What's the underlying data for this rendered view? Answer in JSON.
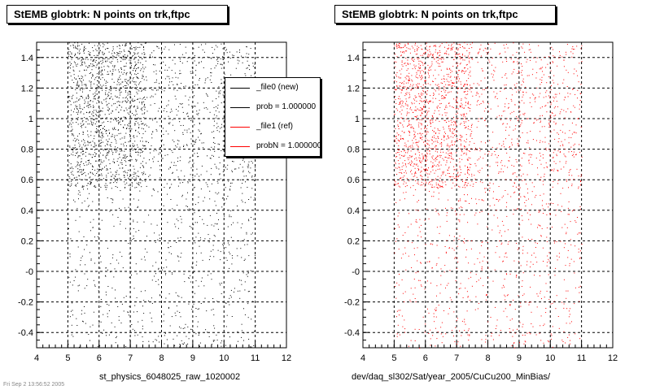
{
  "panels": [
    {
      "title": "StEMB globtrk: N points on trk,ftpc",
      "xlabel": "st_physics_6048025_raw_1020002",
      "marker_color": "#000000"
    },
    {
      "title": "StEMB globtrk: N points on trk,ftpc",
      "xlabel": "dev/daq_sl302/Sat/year_2005/CuCu200_MinBias/",
      "marker_color": "#ff0000"
    }
  ],
  "legend": {
    "entries": [
      {
        "label": "_file0 (new)",
        "color": "#000000"
      },
      {
        "label": "prob = 1.000000",
        "color": "#000000"
      },
      {
        "label": "_file1 (ref)",
        "color": "#ff0000"
      },
      {
        "label": "probN = 1.000000",
        "color": "#ff0000"
      }
    ]
  },
  "footer": {
    "text": "Fri Sep 2 13:56:52 2005"
  },
  "chart_data": [
    {
      "type": "scatter",
      "title": "StEMB globtrk: N points on trk,ftpc",
      "xlabel": "st_physics_6048025_raw_1020002",
      "ylabel": "",
      "xlim": [
        4,
        12
      ],
      "ylim": [
        -0.5,
        1.5
      ],
      "x_ticks": [
        "4",
        "5",
        "6",
        "7",
        "8",
        "9",
        "10",
        "11",
        "12"
      ],
      "y_ticks": [
        "-0.4",
        "-0.2",
        "-0",
        "0.2",
        "0.4",
        "0.6",
        "0.8",
        "1",
        "1.2",
        "1.4"
      ],
      "grid": true,
      "series": [
        {
          "name": "_file0 (new)",
          "color": "#000000",
          "x_range": [
            5,
            11
          ],
          "y_range": [
            -0.5,
            1.5
          ],
          "dense_y_range": [
            0.55,
            1.5
          ],
          "dense_x_range": [
            5,
            7.5
          ]
        }
      ]
    },
    {
      "type": "scatter",
      "title": "StEMB globtrk: N points on trk,ftpc",
      "xlabel": "dev/daq_sl302/Sat/year_2005/CuCu200_MinBias/",
      "ylabel": "",
      "xlim": [
        4,
        12
      ],
      "ylim": [
        -0.5,
        1.5
      ],
      "x_ticks": [
        "4",
        "5",
        "6",
        "7",
        "8",
        "9",
        "10",
        "11",
        "12"
      ],
      "y_ticks": [
        "-0.4",
        "-0.2",
        "-0",
        "0.2",
        "0.4",
        "0.6",
        "0.8",
        "1",
        "1.2",
        "1.4"
      ],
      "grid": true,
      "series": [
        {
          "name": "_file1 (ref)",
          "color": "#ff0000",
          "x_range": [
            5,
            11
          ],
          "y_range": [
            -0.5,
            1.5
          ],
          "dense_y_range": [
            0.55,
            1.5
          ],
          "dense_x_range": [
            5,
            7.5
          ]
        }
      ]
    }
  ]
}
